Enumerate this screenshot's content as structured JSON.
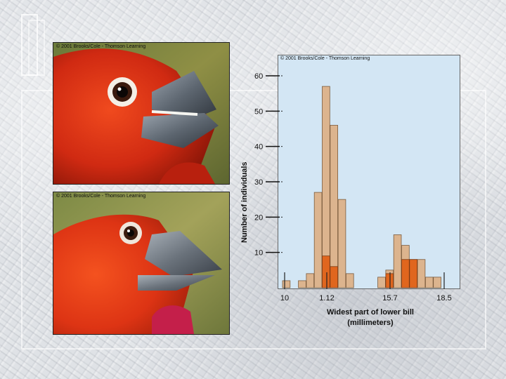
{
  "photos": {
    "top_copyright": "© 2001 Brooks/Cole - Thomson Learning",
    "bottom_copyright": "© 2001 Brooks/Cole - Thomson Learning"
  },
  "chart_copyright": "© 2001 Brooks/Cole - Thomson Learning",
  "colors": {
    "bar_fill": "#dcb48e",
    "bar_highlight": "#e0661e",
    "chart_background": "#d3e6f4"
  },
  "chart_data": {
    "type": "bar",
    "ylabel": "Number of individuals",
    "xlabel_lines": [
      "Widest part of lower bill",
      "(millimeters)"
    ],
    "ylim": [
      0,
      60
    ],
    "y_ticks": [
      10,
      20,
      30,
      40,
      50,
      60
    ],
    "x_ticks": [
      "10",
      "1.12",
      "15.7",
      "18.5"
    ],
    "grid": false,
    "series": [
      {
        "values": [
          2,
          0,
          2,
          4,
          27,
          57,
          46,
          25,
          4,
          0,
          0,
          0,
          3,
          5,
          15,
          12,
          8,
          8,
          3,
          3
        ]
      },
      {
        "values": [
          0,
          0,
          0,
          0,
          0,
          9,
          6,
          0,
          0,
          0,
          0,
          0,
          0,
          4,
          0,
          8,
          8,
          0,
          0,
          0
        ]
      }
    ]
  }
}
